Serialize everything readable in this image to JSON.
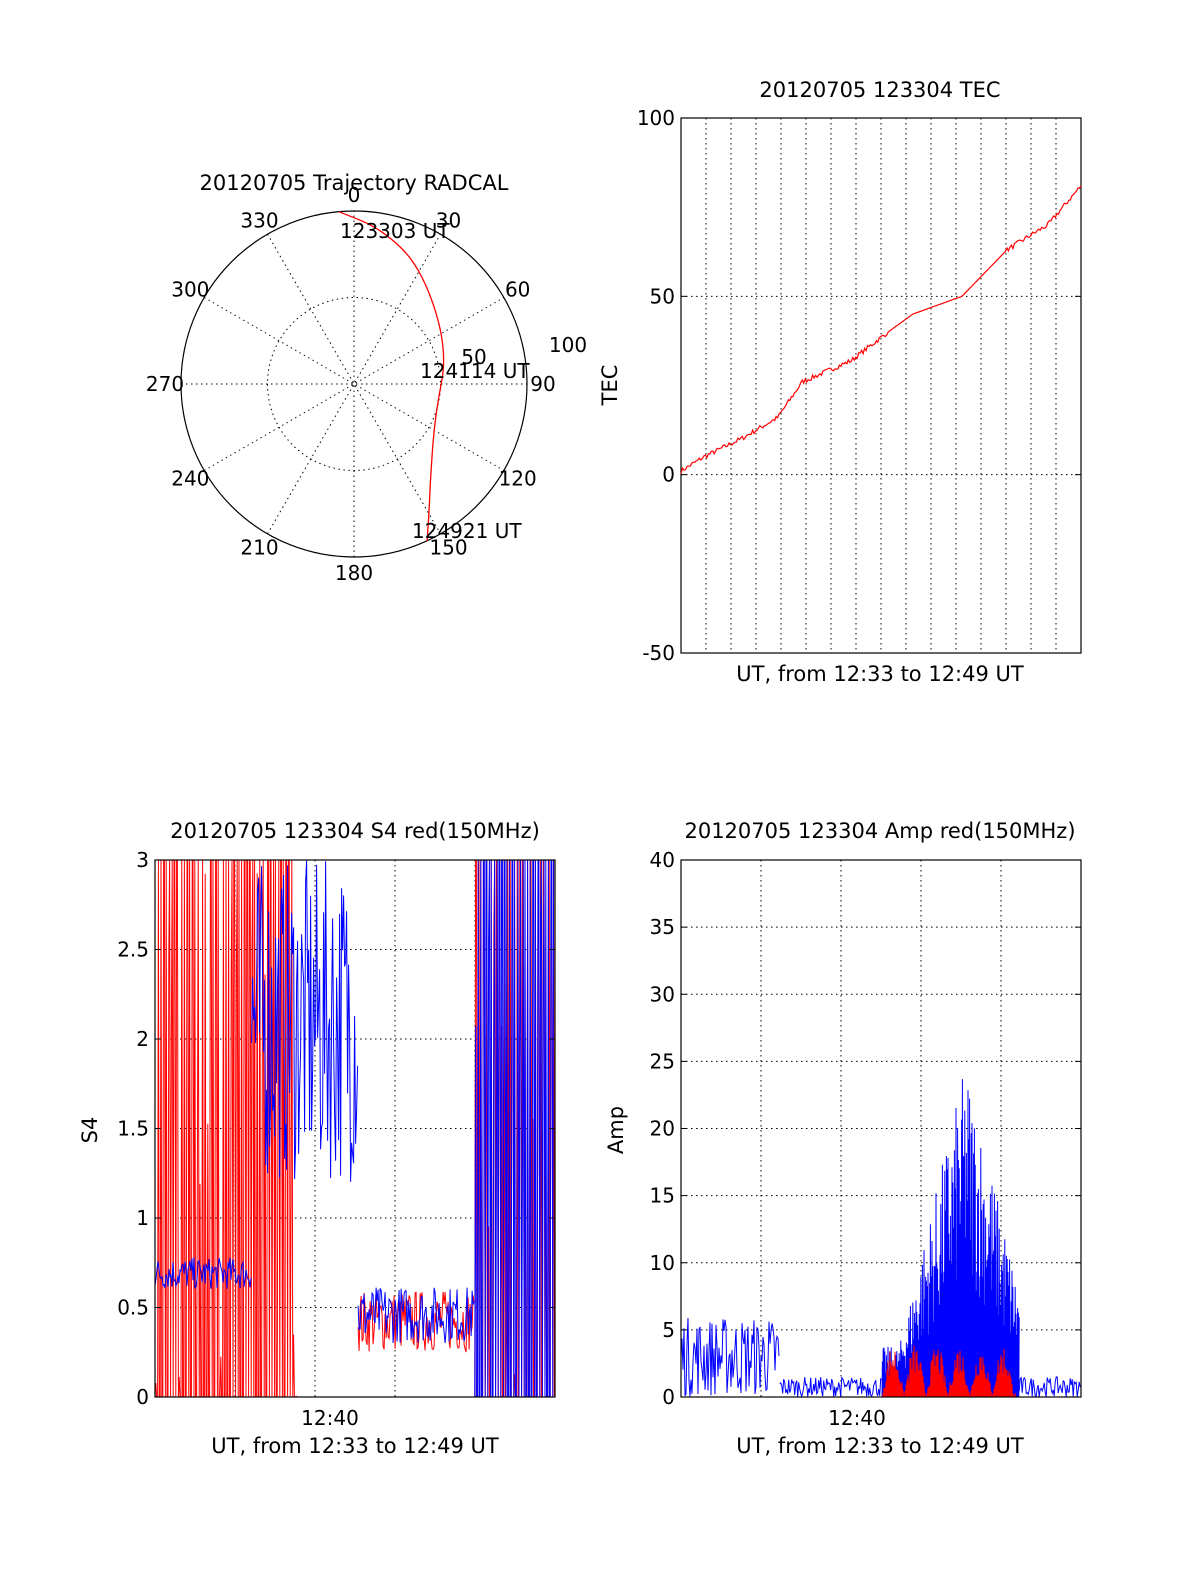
{
  "chart_data": [
    {
      "type": "polar",
      "title": "20120705 Trajectory RADCAL",
      "angle_labels": [
        "0",
        "30",
        "60",
        "90",
        "120",
        "150",
        "180",
        "210",
        "240",
        "270",
        "300",
        "330"
      ],
      "radius_labels": [
        "50",
        "100"
      ],
      "rlim": [
        0,
        100
      ],
      "grid": true,
      "series": [
        {
          "color": "#ff0000",
          "azimuth": [
            355,
            10,
            30,
            70,
            110,
            140,
            150,
            155
          ],
          "zenith": [
            90,
            82,
            70,
            52,
            45,
            62,
            78,
            90
          ]
        }
      ],
      "annotations": [
        {
          "text": "123303 UT",
          "azimuth": 355,
          "zenith": 90
        },
        {
          "text": "124114 UT",
          "azimuth": 73,
          "zenith": 52
        },
        {
          "text": "124921 UT",
          "azimuth": 155,
          "zenith": 90
        }
      ]
    },
    {
      "type": "line",
      "title": "20120705 123304 TEC",
      "xlabel": "UT, from 12:33 to 12:49 UT",
      "ylabel": "TEC",
      "xlim": [
        "12:33:04",
        "12:49:21"
      ],
      "ylim": [
        -50,
        100
      ],
      "yticks": [
        "100",
        "50",
        "0",
        "-50"
      ],
      "grid": true,
      "series": [
        {
          "color": "#ff0000",
          "x": [
            "12:33:04",
            "12:34:00",
            "12:35:30",
            "12:37:00",
            "12:38:00",
            "12:39:20",
            "12:40:00",
            "12:41:30",
            "12:42:30",
            "12:44:30",
            "12:46:20",
            "12:47:30",
            "12:48:00",
            "12:49:21"
          ],
          "y": [
            1,
            5,
            10,
            16,
            26,
            30,
            32,
            40,
            45,
            50,
            63,
            68,
            70,
            81
          ]
        }
      ]
    },
    {
      "type": "line",
      "title": "20120705 123304 S4 red(150MHz)",
      "xlabel": "UT, from 12:33 to 12:49 UT",
      "ylabel": "S4",
      "xlim": [
        "12:33:04",
        "12:49:21"
      ],
      "ylim": [
        0,
        3
      ],
      "yticks": [
        "3",
        "2.5",
        "2",
        "1.5",
        "1",
        "0.5",
        "0"
      ],
      "xticks": [
        "12:40"
      ],
      "grid": true,
      "series": [
        {
          "color": "#ff0000",
          "segments": [
            {
              "x": [
                "12:33:04",
                "12:38:50"
              ],
              "y": [
                0,
                3
              ],
              "pattern": "spikes"
            },
            {
              "x": [
                "12:41:20",
                "12:46:05"
              ],
              "y": [
                0.25,
                0.6
              ],
              "pattern": "noise"
            },
            {
              "x": [
                "12:46:05",
                "12:49:21"
              ],
              "y": [
                0,
                3
              ],
              "pattern": "spikes"
            }
          ]
        },
        {
          "color": "#0000ff",
          "segments": [
            {
              "x": [
                "12:33:04",
                "12:37:00"
              ],
              "y": [
                0.6,
                0.78
              ],
              "pattern": "noise"
            },
            {
              "x": [
                "12:37:00",
                "12:41:20"
              ],
              "y": [
                1.2,
                3
              ],
              "pattern": "noise"
            },
            {
              "x": [
                "12:41:20",
                "12:46:05"
              ],
              "y": [
                0.3,
                0.62
              ],
              "pattern": "noise"
            },
            {
              "x": [
                "12:46:05",
                "12:49:21"
              ],
              "y": [
                0,
                3
              ],
              "pattern": "spikes"
            }
          ]
        }
      ]
    },
    {
      "type": "line",
      "title": "20120705 123304 Amp red(150MHz)",
      "xlabel": "UT, from 12:33 to 12:49 UT",
      "ylabel": "Amp",
      "xlim": [
        "12:33:04",
        "12:49:21"
      ],
      "ylim": [
        0,
        40
      ],
      "yticks": [
        "40",
        "35",
        "30",
        "25",
        "20",
        "15",
        "10",
        "5",
        "0"
      ],
      "xticks": [
        "12:40"
      ],
      "grid": true,
      "series": [
        {
          "color": "#0000ff",
          "segments": [
            {
              "x": [
                "12:33:04",
                "12:37:05"
              ],
              "y": [
                0,
                6
              ],
              "pattern": "noise"
            },
            {
              "x": [
                "12:37:05",
                "12:41:15"
              ],
              "y": [
                0,
                1.5
              ],
              "pattern": "noise"
            },
            {
              "x": [
                "12:41:15",
                "12:46:50"
              ],
              "y": [
                0,
                25
              ],
              "pattern": "burst"
            },
            {
              "x": [
                "12:46:50",
                "12:49:21"
              ],
              "y": [
                0,
                1.5
              ],
              "pattern": "noise"
            }
          ]
        },
        {
          "color": "#ff0000",
          "segments": [
            {
              "x": [
                "12:41:15",
                "12:46:40"
              ],
              "y": [
                0,
                4
              ],
              "pattern": "peaks"
            }
          ]
        }
      ]
    }
  ]
}
